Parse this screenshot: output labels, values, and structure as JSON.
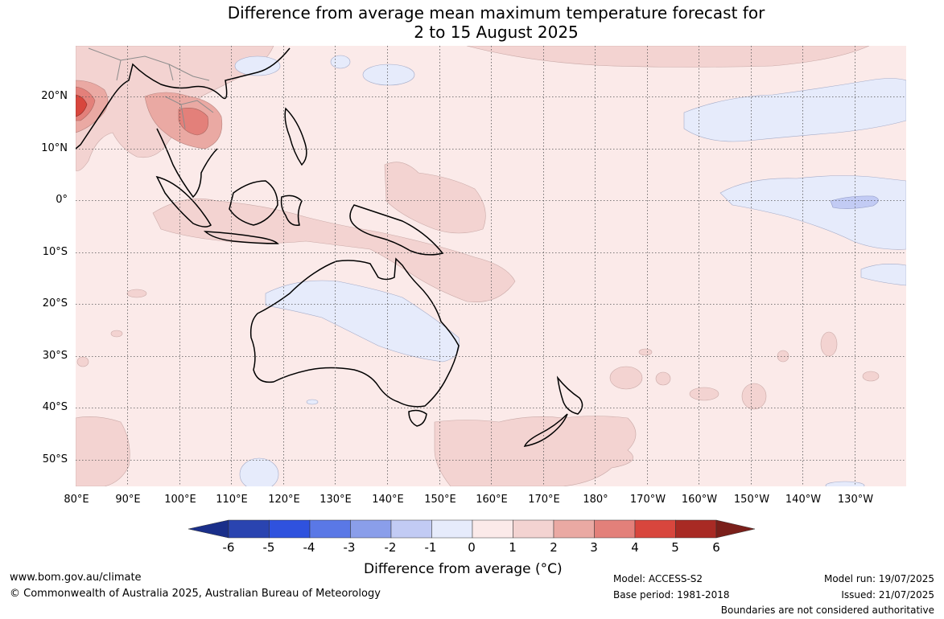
{
  "title": {
    "line1": "Difference from average mean maximum temperature forecast for",
    "line2": "2 to 15 August 2025"
  },
  "map": {
    "region": "Asia-Pacific, Australia and south-west Pacific",
    "lat_labels": [
      "20°N",
      "10°N",
      "0°",
      "10°S",
      "20°S",
      "30°S",
      "40°S",
      "50°S"
    ],
    "lon_labels": [
      "80°E",
      "90°E",
      "100°E",
      "110°E",
      "120°E",
      "130°E",
      "140°E",
      "150°E",
      "160°E",
      "170°E",
      "180°",
      "170°W",
      "160°W",
      "150°W",
      "140°W",
      "130°W"
    ],
    "gridlines": "dotted",
    "background_anomaly_color": "#fbeae9",
    "notable_features": [
      "warm anomaly +3 to +4 over Indochina and north-west Bay of Bengal",
      "weak cool anomaly over central and western Australia",
      "weak cool anomaly over central equatorial Pacific and north Pacific",
      "weak warm anomalies across Maritime Continent, Coral Sea and Tasman Sea"
    ]
  },
  "colorbar": {
    "title": "Difference from average (°C)",
    "tick_labels": [
      "-6",
      "-5",
      "-4",
      "-3",
      "-2",
      "-1",
      "0",
      "1",
      "2",
      "3",
      "4",
      "5",
      "6"
    ],
    "bins": [
      {
        "range": "< -6",
        "color": "#1a2f8a"
      },
      {
        "range": "-6 to -5",
        "color": "#2a44b0"
      },
      {
        "range": "-5 to -4",
        "color": "#2f52de"
      },
      {
        "range": "-4 to -3",
        "color": "#5a78e6"
      },
      {
        "range": "-3 to -2",
        "color": "#8a9eea"
      },
      {
        "range": "-2 to -1",
        "color": "#c2cbf4"
      },
      {
        "range": "-1 to 0",
        "color": "#e6ebfb"
      },
      {
        "range": "0 to 1",
        "color": "#fbeae9"
      },
      {
        "range": "1 to 2",
        "color": "#f3d3d1"
      },
      {
        "range": "2 to 3",
        "color": "#eaa9a3"
      },
      {
        "range": "3 to 4",
        "color": "#e3807a"
      },
      {
        "range": "4 to 5",
        "color": "#d8463d"
      },
      {
        "range": "5 to 6",
        "color": "#a82a24"
      },
      {
        "range": "> 6",
        "color": "#7a1f1a"
      }
    ]
  },
  "footer": {
    "website": "www.bom.gov.au/climate",
    "copyright": "© Commonwealth of Australia 2025, Australian Bureau of Meteorology",
    "model": "Model: ACCESS-S2",
    "base_period": "Base period: 1981-2018",
    "model_run": "Model run: 19/07/2025",
    "issued": "Issued: 21/07/2025",
    "disclaimer": "Boundaries are not considered authoritative"
  }
}
